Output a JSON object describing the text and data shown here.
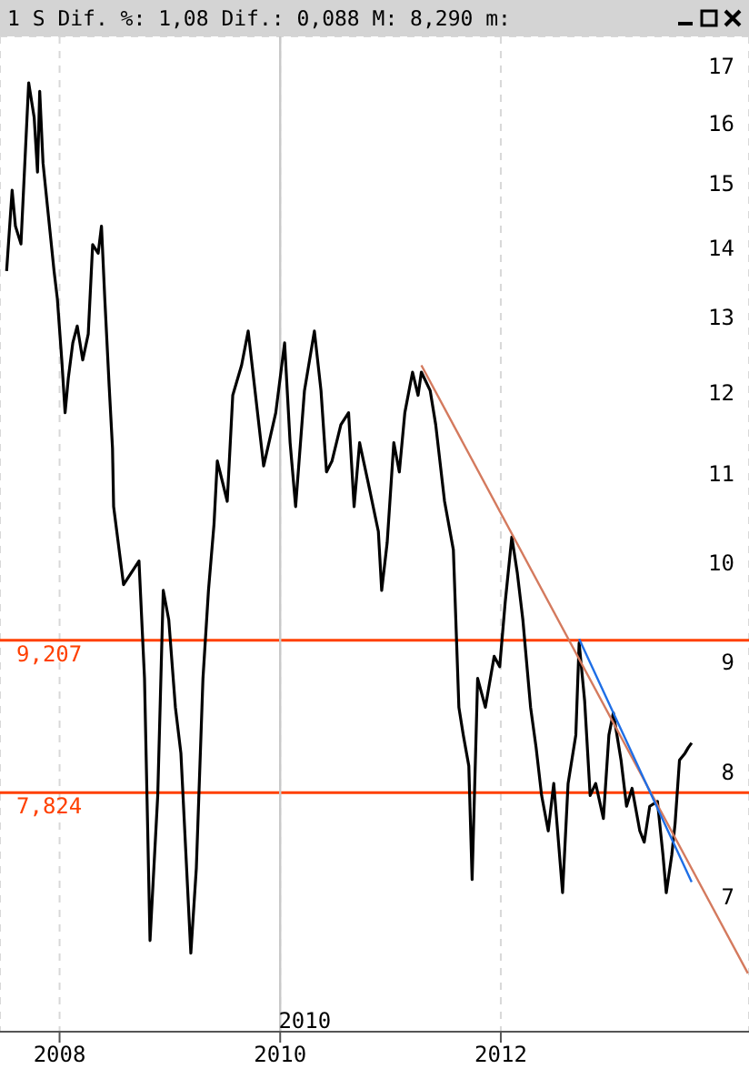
{
  "chart_data": {
    "type": "line",
    "title": "1 S Dif. %: 1,08 Dif.: 0,088 M: 8,290 m:",
    "xlim": [
      2007.46,
      2014.25
    ],
    "xticks": [
      2008,
      2010,
      2012
    ],
    "ylim": [
      6.06,
      17.55
    ],
    "yticks": [
      7,
      8,
      9,
      10,
      11,
      12,
      13,
      14,
      15,
      16,
      17
    ],
    "log": "y",
    "grid": true,
    "marker": "none",
    "line_style": "solid",
    "series": [
      {
        "color": "#000000",
        "x": [
          2007.52,
          2007.57,
          2007.6,
          2007.65,
          2007.72,
          2007.77,
          2007.8,
          2007.82,
          2007.85,
          2007.9,
          2007.95,
          2007.98,
          2008.02,
          2008.05,
          2008.08,
          2008.12,
          2008.16,
          2008.21,
          2008.26,
          2008.3,
          2008.35,
          2008.38,
          2008.41,
          2008.45,
          2008.48,
          2008.49,
          2008.58,
          2008.72,
          2008.77,
          2008.82,
          2008.89,
          2008.94,
          2008.99,
          2009.05,
          2009.1,
          2009.19,
          2009.24,
          2009.3,
          2009.35,
          2009.4,
          2009.43,
          2009.52,
          2009.57,
          2009.65,
          2009.71,
          2009.85,
          2009.96,
          2010.04,
          2010.09,
          2010.14,
          2010.22,
          2010.31,
          2010.37,
          2010.42,
          2010.47,
          2010.55,
          2010.62,
          2010.67,
          2010.72,
          2010.8,
          2010.89,
          2010.92,
          2010.97,
          2011.03,
          2011.08,
          2011.13,
          2011.2,
          2011.25,
          2011.28,
          2011.36,
          2011.41,
          2011.49,
          2011.57,
          2011.62,
          2011.66,
          2011.71,
          2011.74,
          2011.79,
          2011.86,
          2011.94,
          2011.99,
          2012.04,
          2012.1,
          2012.15,
          2012.2,
          2012.27,
          2012.32,
          2012.37,
          2012.43,
          2012.48,
          2012.56,
          2012.61,
          2012.68,
          2012.71,
          2012.76,
          2012.81,
          2012.86,
          2012.93,
          2012.98,
          2013.02,
          2013.09,
          2013.14,
          2013.19,
          2013.26,
          2013.3,
          2013.35,
          2013.42,
          2013.47,
          2013.5,
          2013.55,
          2013.58,
          2013.62,
          2013.67,
          2013.7,
          2013.73
        ],
        "values": [
          13.66,
          14.89,
          14.33,
          14.06,
          16.7,
          16.09,
          15.18,
          16.55,
          15.33,
          14.47,
          13.66,
          13.26,
          12.42,
          11.74,
          12.19,
          12.65,
          12.88,
          12.42,
          12.77,
          14.05,
          13.92,
          14.33,
          13.26,
          12.07,
          11.3,
          10.62,
          9.77,
          10.02,
          8.84,
          6.68,
          7.8,
          9.71,
          9.41,
          8.57,
          8.16,
          6.59,
          7.22,
          8.84,
          9.71,
          10.42,
          11.15,
          10.68,
          11.96,
          12.35,
          12.81,
          11.09,
          11.74,
          12.65,
          11.37,
          10.62,
          12.02,
          12.81,
          12.02,
          11.02,
          11.15,
          11.59,
          11.74,
          10.62,
          11.37,
          10.88,
          10.34,
          9.71,
          10.22,
          11.37,
          11.02,
          11.74,
          12.26,
          11.96,
          12.26,
          12.02,
          11.59,
          10.68,
          10.14,
          8.57,
          8.32,
          8.05,
          7.13,
          8.84,
          8.57,
          9.05,
          8.95,
          9.59,
          10.28,
          9.89,
          9.41,
          8.57,
          8.21,
          7.8,
          7.51,
          7.9,
          7.03,
          7.9,
          8.32,
          9.18,
          8.63,
          7.8,
          7.9,
          7.61,
          8.32,
          8.52,
          8.1,
          7.71,
          7.86,
          7.51,
          7.42,
          7.71,
          7.75,
          7.32,
          7.03,
          7.32,
          7.57,
          8.1,
          8.16,
          8.21,
          8.25
        ]
      },
      {
        "type": "line",
        "color": "#d47a5e",
        "x": [
          2011.28,
          2014.24
        ],
        "values": [
          12.35,
          6.45
        ]
      },
      {
        "type": "line",
        "color": "#1e6ee6",
        "x": [
          2012.71,
          2013.73
        ],
        "values": [
          9.22,
          7.11
        ]
      }
    ],
    "ref_lines": [
      {
        "axis": "y",
        "value": 9.207,
        "label": "9,207",
        "color": "#ff4000"
      },
      {
        "axis": "y",
        "value": 7.824,
        "label": "7,824",
        "color": "#ff4000"
      },
      {
        "axis": "x",
        "value": 2010,
        "label": "2010",
        "color": "#c8c8c8"
      }
    ]
  }
}
